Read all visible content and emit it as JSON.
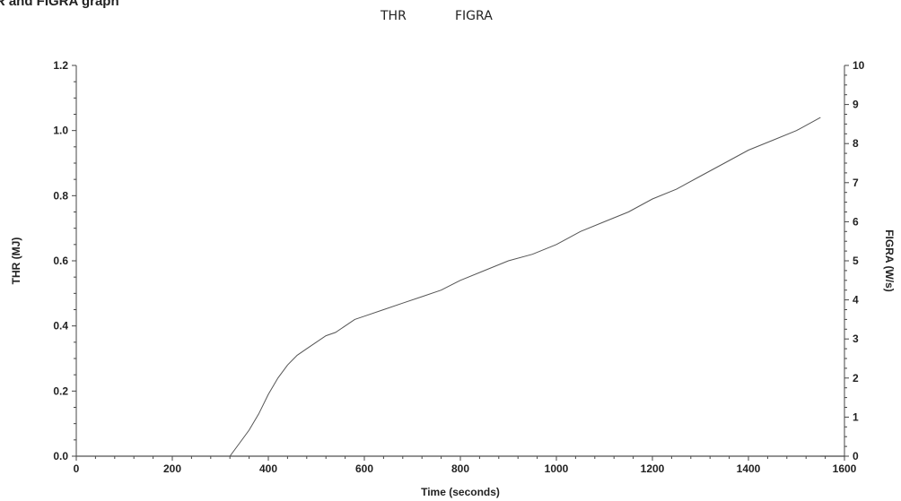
{
  "header": {
    "title": "HR and FIGRA graph"
  },
  "legend": {
    "thr_label": "THR",
    "figra_label": "FIGRA"
  },
  "chart_data": {
    "type": "line",
    "title": "",
    "xlabel": "Time (seconds)",
    "ylabel_left": "THR (MJ)",
    "ylabel_right": "FIGRA (W/s)",
    "xlim": [
      0,
      1600
    ],
    "ylim_left": [
      0.0,
      1.2
    ],
    "ylim_right": [
      0,
      10
    ],
    "x_ticks": [
      "0",
      "200",
      "400",
      "600",
      "800",
      "1000",
      "1200",
      "1400",
      "1600"
    ],
    "y_left_ticks": [
      "0.0",
      "0.2",
      "0.4",
      "0.6",
      "0.8",
      "1.0",
      "1.2"
    ],
    "y_right_ticks": [
      "0",
      "1",
      "2",
      "3",
      "4",
      "5",
      "6",
      "7",
      "8",
      "9",
      "10"
    ],
    "grid": false,
    "line_color": "#555555",
    "series": [
      {
        "name": "THR",
        "axis": "left",
        "x": [
          320,
          340,
          360,
          380,
          400,
          420,
          440,
          460,
          480,
          500,
          520,
          540,
          560,
          580,
          600,
          640,
          680,
          720,
          760,
          800,
          850,
          900,
          950,
          1000,
          1050,
          1100,
          1150,
          1200,
          1250,
          1300,
          1350,
          1400,
          1450,
          1500,
          1550
        ],
        "y": [
          0.0,
          0.04,
          0.08,
          0.13,
          0.19,
          0.24,
          0.28,
          0.31,
          0.33,
          0.35,
          0.37,
          0.38,
          0.4,
          0.42,
          0.43,
          0.45,
          0.47,
          0.49,
          0.51,
          0.54,
          0.57,
          0.6,
          0.62,
          0.65,
          0.69,
          0.72,
          0.75,
          0.79,
          0.82,
          0.86,
          0.9,
          0.94,
          0.97,
          1.0,
          1.04
        ]
      },
      {
        "name": "FIGRA",
        "axis": "right",
        "x": [
          0,
          200,
          400,
          600,
          800,
          1000,
          1200,
          1400,
          1550
        ],
        "y": [
          0,
          0,
          0,
          0,
          0,
          0,
          0,
          0,
          0
        ]
      }
    ]
  }
}
